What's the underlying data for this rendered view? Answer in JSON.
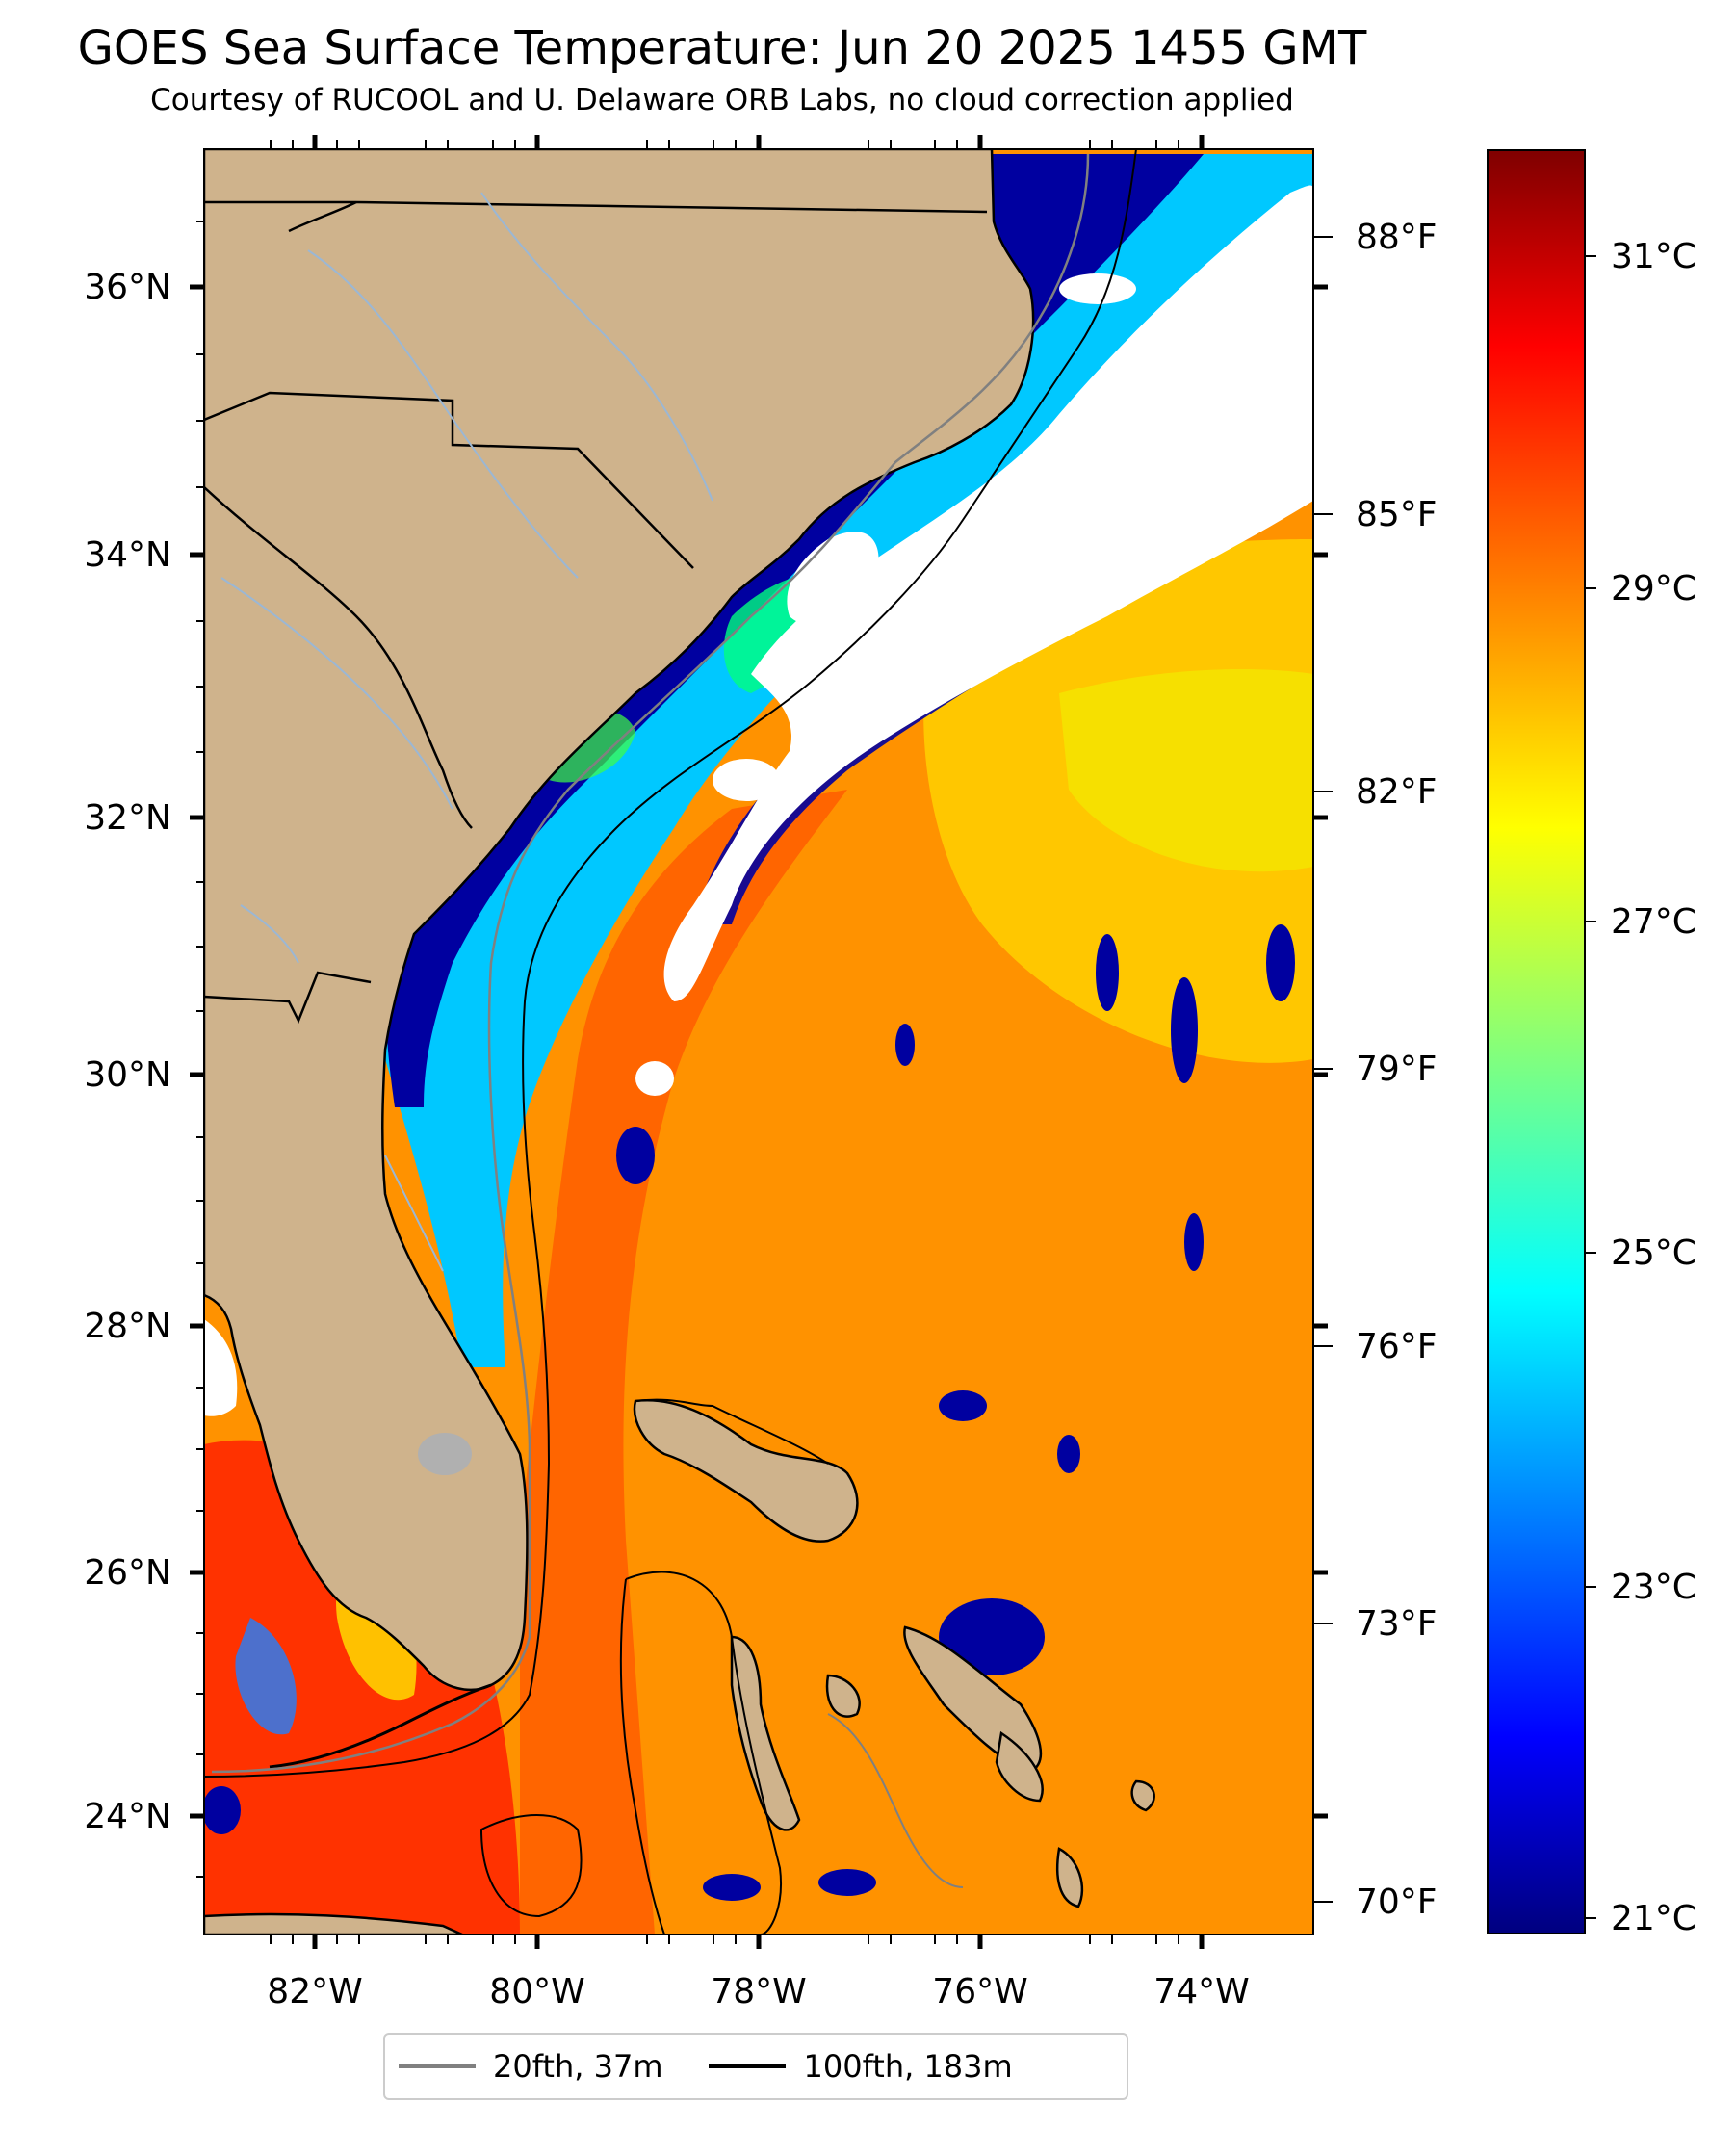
{
  "title": "GOES Sea Surface Temperature: Jun 20 2025 1455 GMT",
  "subtitle": "Courtesy of RUCOOL and U. Delaware ORB Labs, no cloud correction applied",
  "map": {
    "lat_range": [
      23.1,
      37.0
    ],
    "lon_range": [
      -83.0,
      -73.0
    ],
    "lat_ticks": [
      "24°N",
      "26°N",
      "28°N",
      "30°N",
      "32°N",
      "34°N",
      "36°N"
    ],
    "lon_ticks": [
      "82°W",
      "80°W",
      "78°W",
      "76°W",
      "74°W"
    ],
    "f_ticks": [
      "70°F",
      "73°F",
      "76°F",
      "79°F",
      "82°F",
      "85°F",
      "88°F"
    ],
    "colors": {
      "land": "#cfb38c",
      "cloud": "#ffffff",
      "cold": "#00008f",
      "warm": "#ff8c00",
      "hot": "#ff3000"
    }
  },
  "colorbar": {
    "range_c": [
      20.8,
      31.8
    ],
    "ticks": [
      "21°C",
      "23°C",
      "25°C",
      "27°C",
      "29°C",
      "31°C"
    ],
    "colormap": "jet"
  },
  "legend": [
    {
      "label": "20fth, 37m",
      "color": "#808080"
    },
    {
      "label": "100fth, 183m",
      "color": "#000000"
    }
  ]
}
